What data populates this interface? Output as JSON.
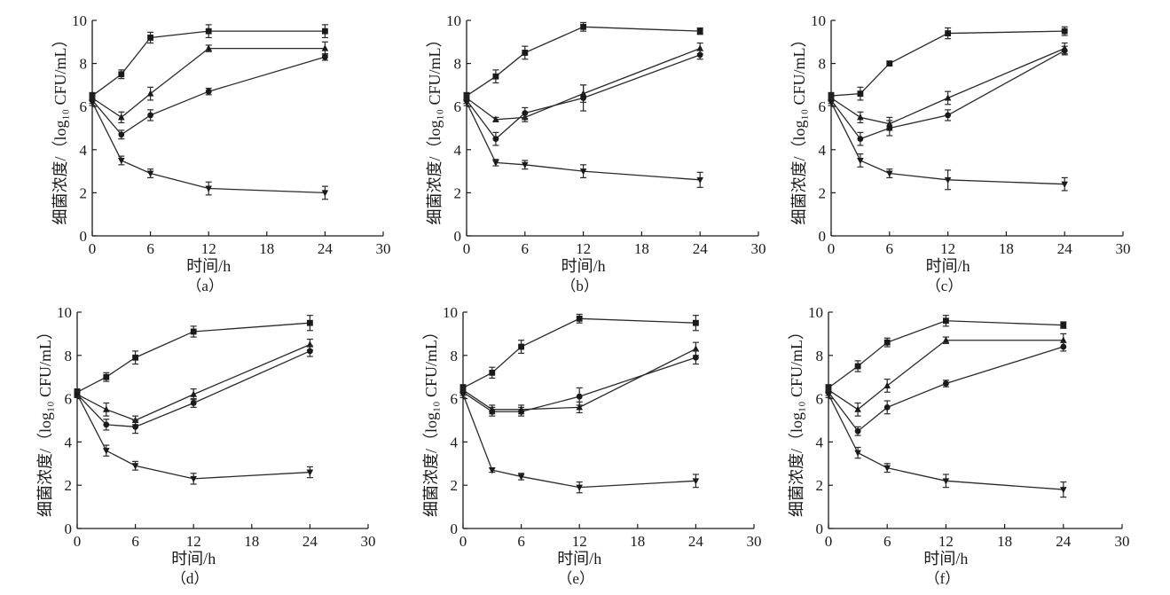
{
  "chart_data": [
    {
      "type": "line",
      "label": "（a）",
      "xlabel": "时间/h",
      "ylabel": "细菌浓度/（log₁₀ CFU/mL）",
      "xlim": [
        0,
        30
      ],
      "ylim": [
        0,
        10
      ],
      "xticks": [
        "0",
        "6",
        "12",
        "18",
        "24",
        "30"
      ],
      "yticks": [
        "0",
        "2",
        "4",
        "6",
        "8",
        "10"
      ],
      "x": [
        0,
        3,
        6,
        12,
        24
      ],
      "series": [
        {
          "marker": "square",
          "values": [
            6.5,
            7.5,
            9.2,
            9.5,
            9.5
          ],
          "err": [
            0.15,
            0.2,
            0.25,
            0.3,
            0.3
          ]
        },
        {
          "marker": "triangle",
          "values": [
            6.4,
            5.5,
            6.6,
            8.7,
            8.7
          ],
          "err": [
            0.15,
            0.25,
            0.3,
            0.15,
            0.3
          ]
        },
        {
          "marker": "circle",
          "values": [
            6.3,
            4.7,
            5.6,
            6.7,
            8.3
          ],
          "err": [
            0.15,
            0.2,
            0.25,
            0.15,
            0.15
          ]
        },
        {
          "marker": "diamond",
          "values": [
            6.2,
            3.5,
            2.9,
            2.2,
            2.0
          ],
          "err": [
            0.15,
            0.2,
            0.2,
            0.3,
            0.3
          ]
        }
      ]
    },
    {
      "type": "line",
      "label": "（b）",
      "xlabel": "时间/h",
      "ylabel": "细菌浓度/（log₁₀ CFU/mL）",
      "xlim": [
        0,
        30
      ],
      "ylim": [
        0,
        10
      ],
      "xticks": [
        "0",
        "6",
        "12",
        "18",
        "24",
        "30"
      ],
      "yticks": [
        "0",
        "2",
        "4",
        "6",
        "8",
        "10"
      ],
      "x": [
        0,
        3,
        6,
        12,
        24
      ],
      "series": [
        {
          "marker": "square",
          "values": [
            6.5,
            7.4,
            8.5,
            9.7,
            9.5
          ],
          "err": [
            0.15,
            0.3,
            0.3,
            0.2,
            0.15
          ]
        },
        {
          "marker": "triangle",
          "values": [
            6.4,
            5.4,
            5.5,
            6.6,
            8.7
          ],
          "err": [
            0.15,
            0.1,
            0.2,
            0.4,
            0.25
          ]
        },
        {
          "marker": "circle",
          "values": [
            6.3,
            4.5,
            5.7,
            6.4,
            8.4
          ],
          "err": [
            0.15,
            0.3,
            0.25,
            0.6,
            0.2
          ]
        },
        {
          "marker": "diamond",
          "values": [
            6.2,
            3.4,
            3.3,
            3.0,
            2.6
          ],
          "err": [
            0.15,
            0.15,
            0.2,
            0.3,
            0.35
          ]
        }
      ]
    },
    {
      "type": "line",
      "label": "（c）",
      "xlabel": "时间/h",
      "ylabel": "细菌浓度/（log₁₀ CFU/mL）",
      "xlim": [
        0,
        30
      ],
      "ylim": [
        0,
        10
      ],
      "xticks": [
        "0",
        "6",
        "12",
        "18",
        "24",
        "30"
      ],
      "yticks": [
        "0",
        "2",
        "4",
        "6",
        "8",
        "10"
      ],
      "x": [
        0,
        3,
        6,
        12,
        24
      ],
      "series": [
        {
          "marker": "square",
          "values": [
            6.5,
            6.6,
            8.0,
            9.4,
            9.5
          ],
          "err": [
            0.15,
            0.3,
            0.1,
            0.25,
            0.2
          ]
        },
        {
          "marker": "triangle",
          "values": [
            6.4,
            5.5,
            5.2,
            6.4,
            8.7
          ],
          "err": [
            0.15,
            0.25,
            0.3,
            0.3,
            0.25
          ]
        },
        {
          "marker": "circle",
          "values": [
            6.3,
            4.5,
            5.0,
            5.6,
            8.6
          ],
          "err": [
            0.15,
            0.3,
            0.35,
            0.25,
            0.2
          ]
        },
        {
          "marker": "diamond",
          "values": [
            6.2,
            3.5,
            2.9,
            2.6,
            2.4
          ],
          "err": [
            0.15,
            0.3,
            0.2,
            0.45,
            0.3
          ]
        }
      ]
    },
    {
      "type": "line",
      "label": "（d）",
      "xlabel": "时间/h",
      "ylabel": "细菌浓度/（log₁₀ CFU/mL）",
      "xlim": [
        0,
        30
      ],
      "ylim": [
        0,
        10
      ],
      "xticks": [
        "0",
        "6",
        "12",
        "18",
        "24",
        "30"
      ],
      "yticks": [
        "0",
        "2",
        "4",
        "6",
        "8",
        "10"
      ],
      "x": [
        0,
        3,
        6,
        12,
        24
      ],
      "series": [
        {
          "marker": "square",
          "values": [
            6.3,
            7.0,
            7.9,
            9.1,
            9.5
          ],
          "err": [
            0.15,
            0.2,
            0.3,
            0.25,
            0.35
          ]
        },
        {
          "marker": "triangle",
          "values": [
            6.2,
            5.5,
            5.0,
            6.2,
            8.5
          ],
          "err": [
            0.15,
            0.3,
            0.2,
            0.25,
            0.25
          ]
        },
        {
          "marker": "circle",
          "values": [
            6.2,
            4.8,
            4.7,
            5.8,
            8.2
          ],
          "err": [
            0.15,
            0.25,
            0.3,
            0.2,
            0.25
          ]
        },
        {
          "marker": "diamond",
          "values": [
            6.2,
            3.6,
            2.9,
            2.3,
            2.6
          ],
          "err": [
            0.15,
            0.25,
            0.2,
            0.25,
            0.25
          ]
        }
      ]
    },
    {
      "type": "line",
      "label": "（e）",
      "xlabel": "时间/h",
      "ylabel": "细菌浓度/（log₁₀ CFU/mL）",
      "xlim": [
        0,
        30
      ],
      "ylim": [
        0,
        10
      ],
      "xticks": [
        "0",
        "6",
        "12",
        "18",
        "24",
        "30"
      ],
      "yticks": [
        "0",
        "2",
        "4",
        "6",
        "8",
        "10"
      ],
      "x": [
        0,
        3,
        6,
        12,
        24
      ],
      "series": [
        {
          "marker": "square",
          "values": [
            6.5,
            7.2,
            8.4,
            9.7,
            9.5
          ],
          "err": [
            0.15,
            0.25,
            0.3,
            0.2,
            0.35
          ]
        },
        {
          "marker": "triangle",
          "values": [
            6.4,
            5.5,
            5.5,
            5.6,
            8.3
          ],
          "err": [
            0.15,
            0.2,
            0.2,
            0.25,
            0.3
          ]
        },
        {
          "marker": "circle",
          "values": [
            6.3,
            5.4,
            5.4,
            6.1,
            7.9
          ],
          "err": [
            0.15,
            0.2,
            0.2,
            0.4,
            0.3
          ]
        },
        {
          "marker": "diamond",
          "values": [
            6.2,
            2.7,
            2.4,
            1.9,
            2.2
          ],
          "err": [
            0.15,
            0.1,
            0.15,
            0.25,
            0.3
          ]
        }
      ]
    },
    {
      "type": "line",
      "label": "（f）",
      "xlabel": "时间/h",
      "ylabel": "细菌浓度/（log₁₀ CFU/mL）",
      "xlim": [
        0,
        30
      ],
      "ylim": [
        0,
        10
      ],
      "xticks": [
        "0",
        "6",
        "12",
        "18",
        "24",
        "30"
      ],
      "yticks": [
        "0",
        "2",
        "4",
        "6",
        "8",
        "10"
      ],
      "x": [
        0,
        3,
        6,
        12,
        24
      ],
      "series": [
        {
          "marker": "square",
          "values": [
            6.5,
            7.5,
            8.6,
            9.6,
            9.4
          ],
          "err": [
            0.15,
            0.25,
            0.2,
            0.25,
            0.15
          ]
        },
        {
          "marker": "triangle",
          "values": [
            6.4,
            5.5,
            6.6,
            8.7,
            8.7
          ],
          "err": [
            0.15,
            0.3,
            0.3,
            0.15,
            0.3
          ]
        },
        {
          "marker": "circle",
          "values": [
            6.3,
            4.5,
            5.6,
            6.7,
            8.4
          ],
          "err": [
            0.15,
            0.2,
            0.3,
            0.15,
            0.2
          ]
        },
        {
          "marker": "diamond",
          "values": [
            6.2,
            3.5,
            2.8,
            2.2,
            1.8
          ],
          "err": [
            0.15,
            0.25,
            0.2,
            0.3,
            0.35
          ]
        }
      ]
    }
  ]
}
